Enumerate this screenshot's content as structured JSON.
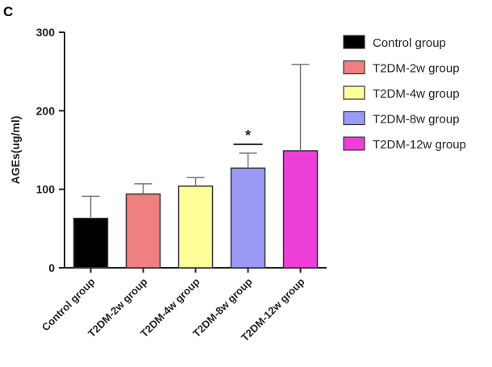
{
  "panel_label": "C",
  "chart_data": {
    "type": "bar",
    "ylabel": "AGEs(ug/ml)",
    "xlabel": "",
    "ylim": [
      0,
      300
    ],
    "yticks": [
      0,
      100,
      200,
      300
    ],
    "categories": [
      "Control group",
      "T2DM-2w group",
      "T2DM-4w group",
      "T2DM-8w group",
      "T2DM-12w group"
    ],
    "values": [
      63,
      94,
      104,
      127,
      149
    ],
    "error_upper": [
      91,
      107,
      115,
      146,
      259
    ],
    "colors": [
      "#000000",
      "#f08080",
      "#ffff99",
      "#9b9bf5",
      "#ee3fd8"
    ],
    "significance": [
      {
        "category": "T2DM-8w group",
        "label": "*"
      }
    ],
    "legend": {
      "position": "right",
      "entries": [
        "Control group",
        "T2DM-2w group",
        "T2DM-4w group",
        "T2DM-8w group",
        "T2DM-12w group"
      ]
    }
  }
}
